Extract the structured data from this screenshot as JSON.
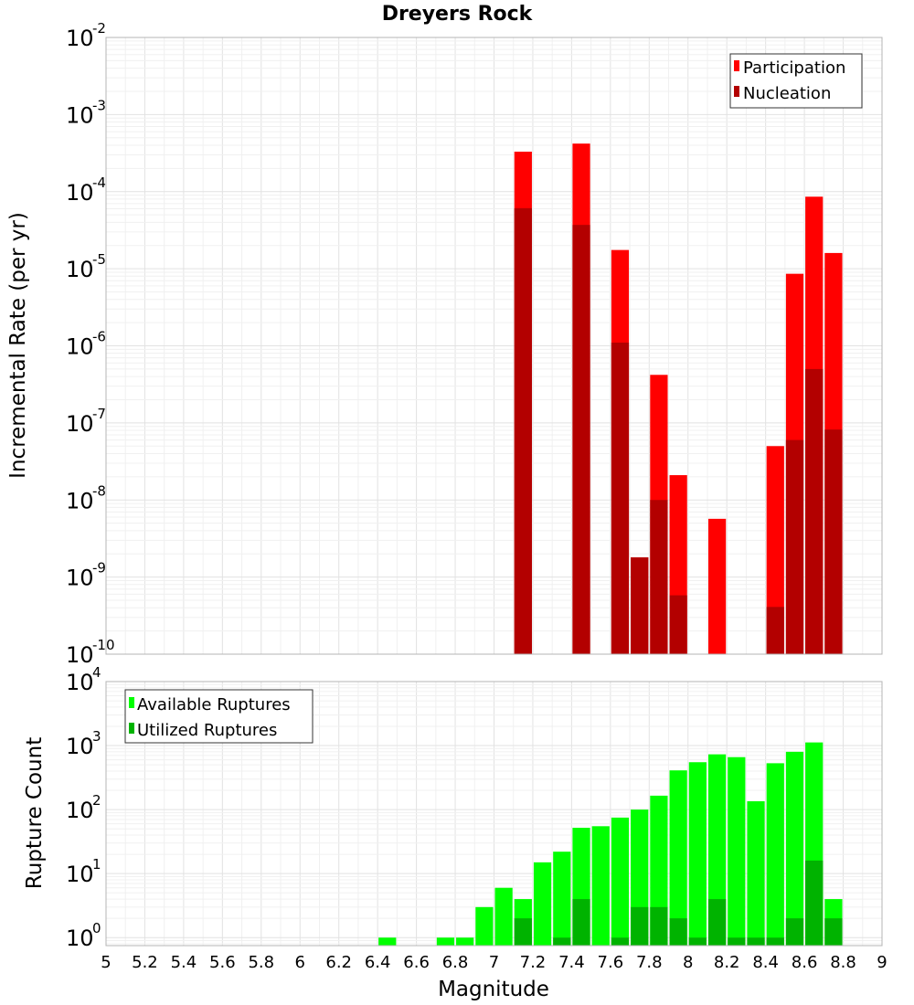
{
  "chart_data": [
    {
      "type": "bar",
      "title": "Dreyers Rock",
      "xlabel": "",
      "ylabel": "Incremental Rate (per yr)",
      "yscale": "log",
      "ylim": [
        1e-10,
        0.01
      ],
      "y_ticks": [
        {
          "base": "10",
          "exp": "-10"
        },
        {
          "base": "10",
          "exp": "-9"
        },
        {
          "base": "10",
          "exp": "-8"
        },
        {
          "base": "10",
          "exp": "-7"
        },
        {
          "base": "10",
          "exp": "-6"
        },
        {
          "base": "10",
          "exp": "-5"
        },
        {
          "base": "10",
          "exp": "-4"
        },
        {
          "base": "10",
          "exp": "-3"
        },
        {
          "base": "10",
          "exp": "-2"
        }
      ],
      "xlim": [
        5,
        9
      ],
      "bin_width": 0.1,
      "legend": "top-right",
      "grid": true,
      "series": [
        {
          "name": "Participation",
          "color": "#ff0000",
          "x": [
            7.15,
            7.45,
            7.65,
            7.75,
            7.85,
            7.95,
            8.15,
            8.45,
            8.55,
            8.65,
            8.75
          ],
          "values": [
            0.00033,
            0.00042,
            1.75e-05,
            1.8e-09,
            4.2e-07,
            2.1e-08,
            5.7e-09,
            5e-08,
            8.6e-06,
            8.6e-05,
            1.6e-05
          ]
        },
        {
          "name": "Nucleation",
          "color": "#b30000",
          "x": [
            7.15,
            7.45,
            7.65,
            7.75,
            7.85,
            7.95,
            8.45,
            8.55,
            8.65,
            8.75
          ],
          "values": [
            6.1e-05,
            3.7e-05,
            1.1e-06,
            1.8e-09,
            1e-08,
            5.8e-10,
            4.1e-10,
            6e-08,
            5e-07,
            8.2e-08
          ]
        }
      ]
    },
    {
      "type": "bar",
      "title": "",
      "xlabel": "Magnitude",
      "ylabel": "Rupture Count",
      "yscale": "log",
      "ylim": [
        0.75,
        10000
      ],
      "y_ticks": [
        {
          "base": "10",
          "exp": "0"
        },
        {
          "base": "10",
          "exp": "1"
        },
        {
          "base": "10",
          "exp": "2"
        },
        {
          "base": "10",
          "exp": "3"
        },
        {
          "base": "10",
          "exp": "4"
        }
      ],
      "xlim": [
        5,
        9
      ],
      "x_ticks": [
        "5",
        "5.2",
        "5.4",
        "5.6",
        "5.8",
        "6",
        "6.2",
        "6.4",
        "6.6",
        "6.8",
        "7",
        "7.2",
        "7.4",
        "7.6",
        "7.8",
        "8",
        "8.2",
        "8.4",
        "8.6",
        "8.8",
        "9"
      ],
      "bin_width": 0.1,
      "legend": "top-left",
      "grid": true,
      "series": [
        {
          "name": "Available Ruptures",
          "color": "#00ff00",
          "x": [
            6.45,
            6.75,
            6.85,
            6.95,
            7.05,
            7.15,
            7.25,
            7.35,
            7.45,
            7.55,
            7.65,
            7.75,
            7.85,
            7.95,
            8.05,
            8.15,
            8.25,
            8.35,
            8.45,
            8.55,
            8.65,
            8.75
          ],
          "values": [
            1,
            1,
            1,
            3,
            6,
            4,
            15,
            22,
            52,
            55,
            75,
            100,
            165,
            410,
            550,
            730,
            660,
            135,
            530,
            800,
            1120,
            4
          ]
        },
        {
          "name": "Utilized Ruptures",
          "color": "#00b300",
          "x": [
            7.15,
            7.35,
            7.45,
            7.65,
            7.75,
            7.85,
            7.95,
            8.05,
            8.15,
            8.25,
            8.35,
            8.45,
            8.55,
            8.65,
            8.75
          ],
          "values": [
            2,
            1,
            4,
            1,
            3,
            3,
            2,
            1,
            4,
            1,
            1,
            1,
            2,
            16,
            2
          ]
        }
      ]
    }
  ]
}
